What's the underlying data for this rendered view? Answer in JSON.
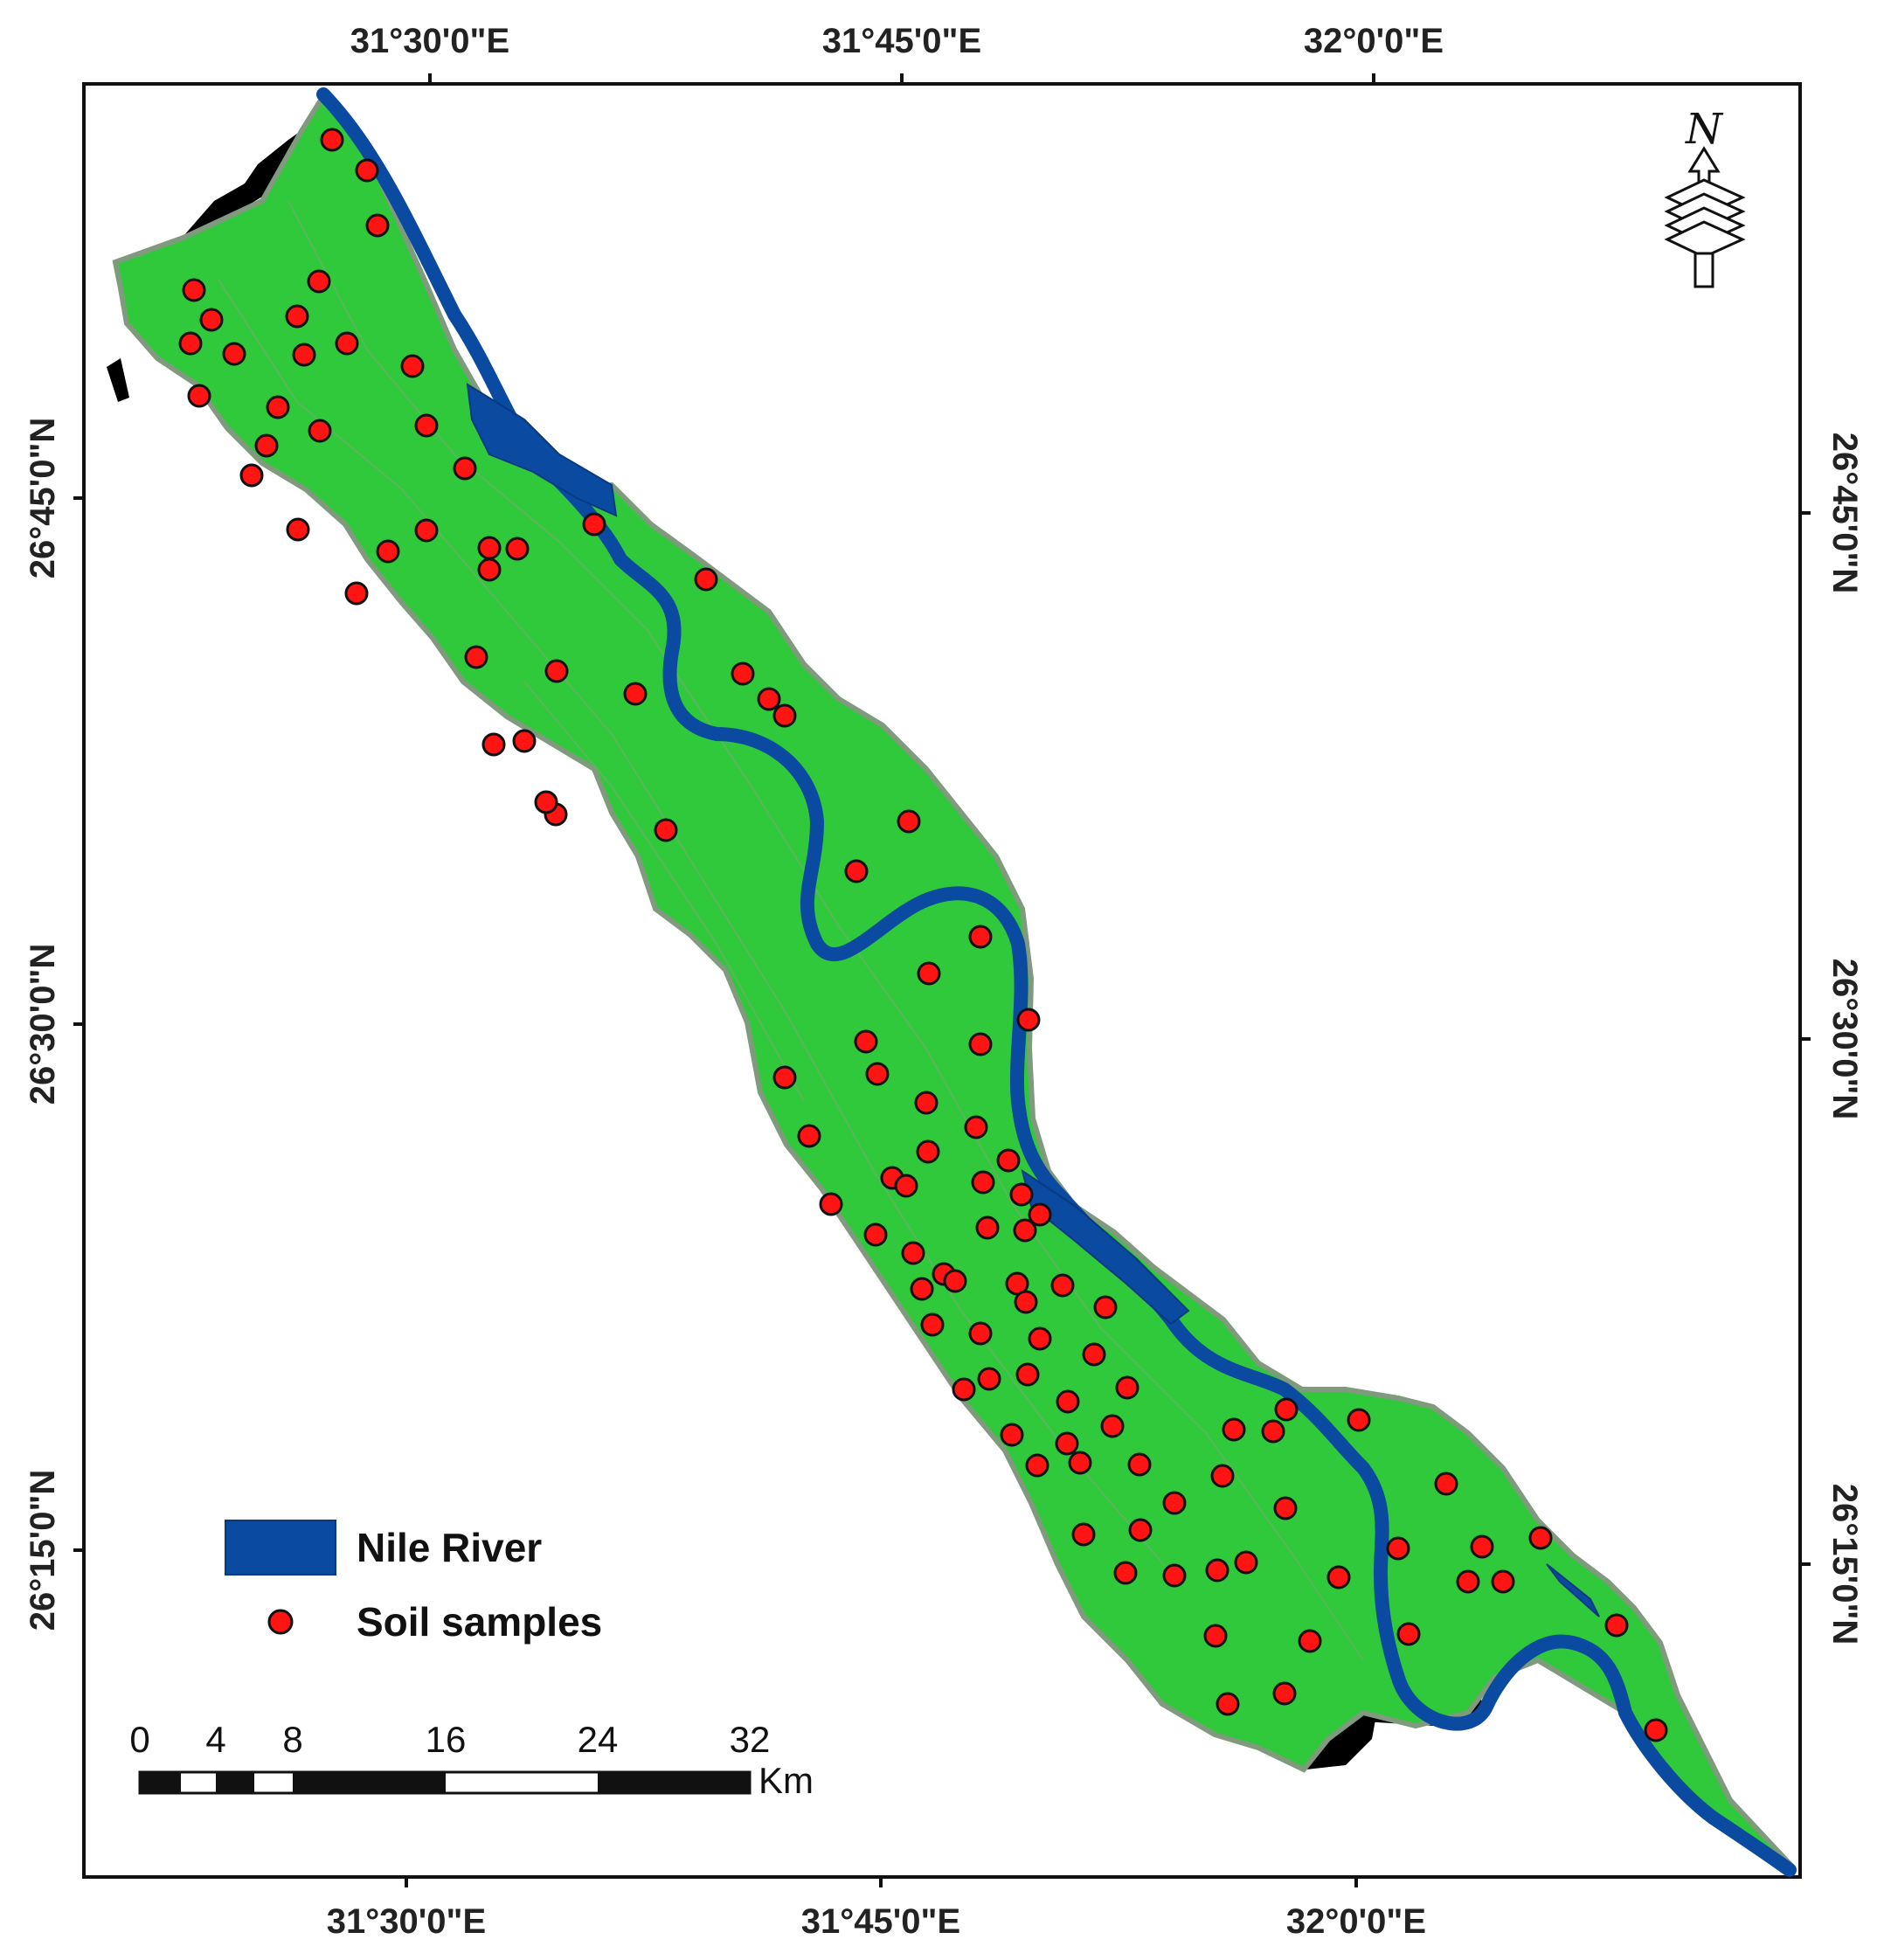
{
  "map": {
    "top_labels": [
      "31°30'0\"E",
      "31°45'0\"E",
      "32°0'0\"E"
    ],
    "bottom_labels": [
      "31°30'0\"E",
      "31°45'0\"E",
      "32°0'0\"E"
    ],
    "left_labels": [
      "26°45'0\"N",
      "26°30'0\"N",
      "26°15'0\"N"
    ],
    "right_labels": [
      "26°45'0\"N",
      "26°30'0\"N",
      "26°15'0\"N"
    ],
    "north_label": "N",
    "legend": {
      "river_label": "Nile River",
      "samples_label": "Soil samples"
    },
    "scale": {
      "ticks": [
        "0",
        "4",
        "8",
        "16",
        "24",
        "32"
      ],
      "unit": "Km"
    },
    "colors": {
      "land": "#2fc93b",
      "river": "#0a4aa0",
      "sample": "#ff1414",
      "shadow": "#000000"
    }
  }
}
